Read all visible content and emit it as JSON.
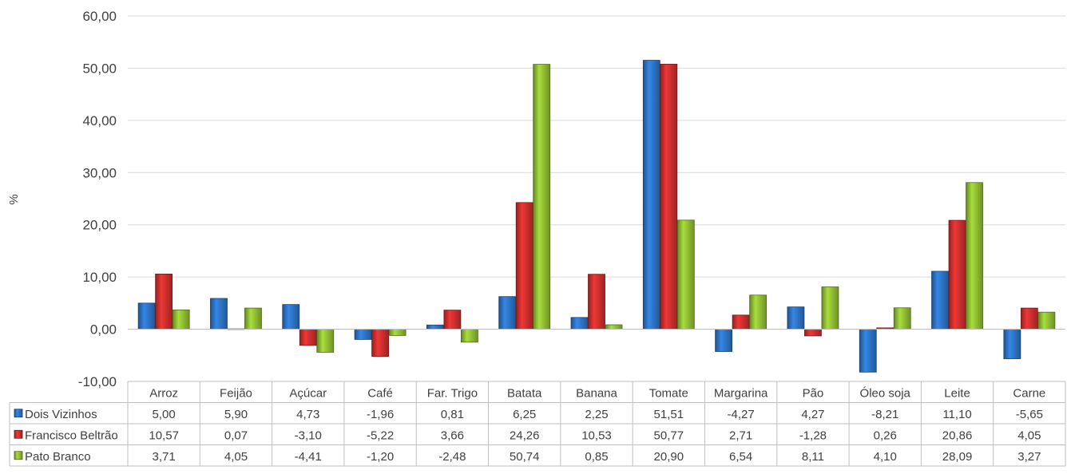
{
  "chart_data": {
    "type": "bar",
    "ylabel": "%",
    "ylim": [
      -10,
      60
    ],
    "yticks": [
      -10,
      0,
      10,
      20,
      30,
      40,
      50,
      60
    ],
    "ytick_labels": [
      "-10,00",
      "0,00",
      "10,00",
      "20,00",
      "30,00",
      "40,00",
      "50,00",
      "60,00"
    ],
    "categories": [
      "Arroz",
      "Feijão",
      "Açúcar",
      "Café",
      "Far. Trigo",
      "Batata",
      "Banana",
      "Tomate",
      "Margarina",
      "Pão",
      "Óleo soja",
      "Leite",
      "Carne"
    ],
    "series": [
      {
        "name": "Dois Vizinhos",
        "color": "#2e75c8",
        "values": [
          5.0,
          5.9,
          4.73,
          -1.96,
          0.81,
          6.25,
          2.25,
          51.51,
          -4.27,
          4.27,
          -8.21,
          11.1,
          -5.65
        ],
        "labels": [
          "5,00",
          "5,90",
          "4,73",
          "-1,96",
          "0,81",
          "6,25",
          "2,25",
          "51,51",
          "-4,27",
          "4,27",
          "-8,21",
          "11,10",
          "-5,65"
        ]
      },
      {
        "name": "Francisco Beltrão",
        "color": "#d0302e",
        "values": [
          10.57,
          0.07,
          -3.1,
          -5.22,
          3.66,
          24.26,
          10.53,
          50.77,
          2.71,
          -1.28,
          0.26,
          20.86,
          4.05
        ],
        "labels": [
          "10,57",
          "0,07",
          "-3,10",
          "-5,22",
          "3,66",
          "24,26",
          "10,53",
          "50,77",
          "2,71",
          "-1,28",
          "0,26",
          "20,86",
          "4,05"
        ]
      },
      {
        "name": "Pato Branco",
        "color": "#92c134",
        "values": [
          3.71,
          4.05,
          -4.41,
          -1.2,
          -2.48,
          50.74,
          0.85,
          20.9,
          6.54,
          8.11,
          4.1,
          28.09,
          3.27
        ],
        "labels": [
          "3,71",
          "4,05",
          "-4,41",
          "-1,20",
          "-2,48",
          "50,74",
          "0,85",
          "20,90",
          "6,54",
          "8,11",
          "4,10",
          "28,09",
          "3,27"
        ]
      }
    ],
    "grid": true,
    "legend": "data-table-left"
  }
}
